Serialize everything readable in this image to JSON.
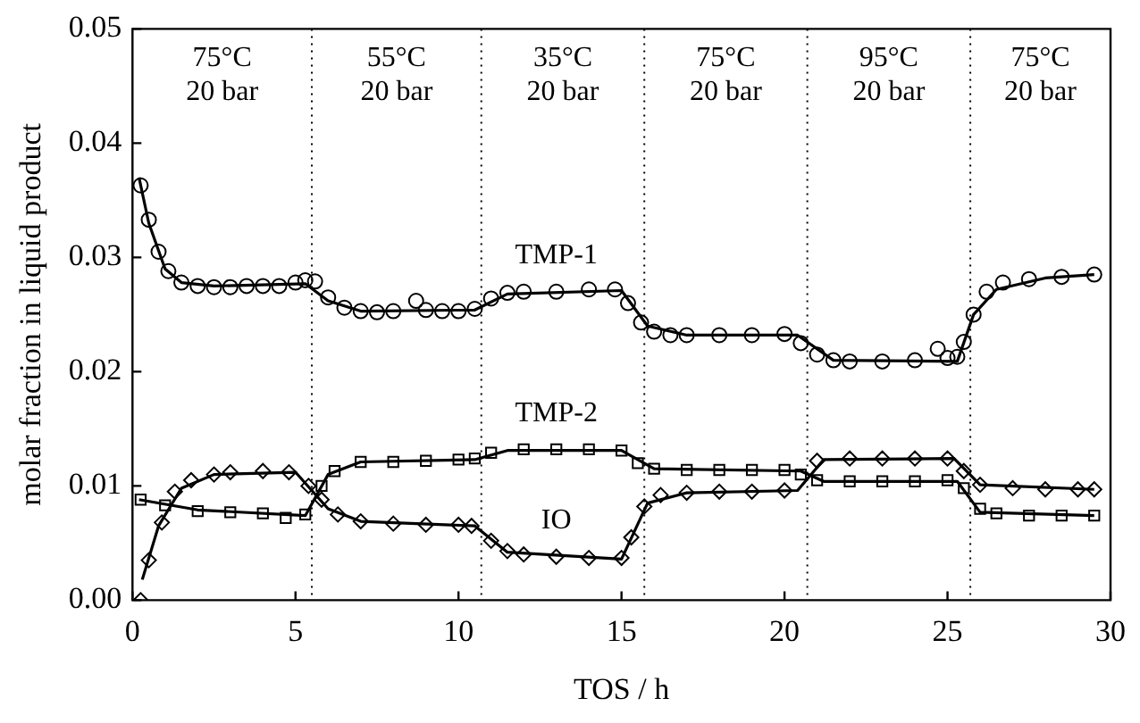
{
  "chart_data": {
    "type": "scatter",
    "xlabel": "TOS / h",
    "ylabel": "molar fraction in liquid product",
    "xlim": [
      0,
      30
    ],
    "xticks": [
      0,
      5,
      10,
      15,
      20,
      25,
      30
    ],
    "ylim": [
      0,
      0.05
    ],
    "yticks": [
      {
        "value": 0,
        "label": "0.00"
      },
      {
        "value": 0.01,
        "label": "0.01"
      },
      {
        "value": 0.02,
        "label": "0.02"
      },
      {
        "value": 0.03,
        "label": "0.03"
      },
      {
        "value": 0.04,
        "label": "0.04"
      },
      {
        "value": 0.05,
        "label": "0.05"
      }
    ],
    "legend": false,
    "series": [
      {
        "name": "TMP-1",
        "marker": "circle",
        "color": "#000000",
        "x": [
          0.25,
          0.5,
          0.8,
          1.1,
          1.5,
          2,
          2.5,
          3,
          3.5,
          4,
          4.5,
          5,
          5.3,
          5.6,
          6,
          6.5,
          7,
          7.5,
          8,
          8.7,
          9,
          9.5,
          10,
          10.5,
          11,
          11.5,
          12,
          13,
          14,
          14.8,
          15.2,
          15.6,
          16,
          16.5,
          17,
          18,
          19,
          20,
          20.5,
          21,
          21.5,
          22,
          23,
          24,
          24.7,
          25,
          25.3,
          25.5,
          25.8,
          26.2,
          26.7,
          27.5,
          28.5,
          29.5
        ],
        "values": [
          0.0363,
          0.0333,
          0.0305,
          0.0288,
          0.0278,
          0.0275,
          0.0274,
          0.0274,
          0.0275,
          0.0275,
          0.0275,
          0.0278,
          0.028,
          0.0279,
          0.0265,
          0.0256,
          0.0253,
          0.0252,
          0.0253,
          0.0262,
          0.0254,
          0.0253,
          0.0253,
          0.0255,
          0.0264,
          0.0269,
          0.027,
          0.027,
          0.0272,
          0.0272,
          0.026,
          0.0243,
          0.0235,
          0.0232,
          0.0232,
          0.0232,
          0.0232,
          0.0233,
          0.0225,
          0.0215,
          0.021,
          0.0209,
          0.0209,
          0.021,
          0.022,
          0.0212,
          0.0213,
          0.0226,
          0.025,
          0.027,
          0.0278,
          0.0281,
          0.0283,
          0.0285
        ]
      },
      {
        "name": "TMP-2",
        "marker": "square",
        "color": "#000000",
        "x": [
          0.25,
          1,
          2,
          3,
          4,
          4.7,
          5.3,
          5.8,
          6.2,
          7,
          8,
          9,
          10,
          10.5,
          11,
          12,
          13,
          14,
          15,
          15.5,
          16,
          17,
          18,
          19,
          20,
          20.5,
          21,
          22,
          23,
          24,
          25,
          25.5,
          26,
          26.5,
          27.5,
          28.5,
          29.5
        ],
        "values": [
          0.0088,
          0.0083,
          0.0078,
          0.0077,
          0.0076,
          0.0072,
          0.0075,
          0.01,
          0.0113,
          0.0121,
          0.0121,
          0.0122,
          0.0123,
          0.0124,
          0.0129,
          0.0132,
          0.0132,
          0.0132,
          0.0131,
          0.012,
          0.0115,
          0.0114,
          0.0114,
          0.0114,
          0.0114,
          0.011,
          0.0105,
          0.0104,
          0.0104,
          0.0104,
          0.0105,
          0.0098,
          0.008,
          0.0076,
          0.0074,
          0.0074,
          0.0074
        ]
      },
      {
        "name": "IO",
        "marker": "diamond",
        "color": "#000000",
        "x": [
          0.25,
          0.5,
          0.9,
          1.3,
          1.8,
          2.5,
          3,
          4,
          4.8,
          5.4,
          5.8,
          6.3,
          7,
          8,
          9,
          10,
          10.4,
          11,
          11.5,
          12,
          13,
          14,
          15,
          15.3,
          15.7,
          16.2,
          17,
          18,
          19,
          20,
          20.5,
          21,
          22,
          23,
          24,
          25,
          25.5,
          26,
          27,
          28,
          29,
          29.5
        ],
        "values": [
          0,
          0.0035,
          0.0068,
          0.0095,
          0.0105,
          0.011,
          0.0112,
          0.0113,
          0.0112,
          0.01,
          0.0088,
          0.0075,
          0.0069,
          0.0067,
          0.0066,
          0.0066,
          0.0065,
          0.0052,
          0.0043,
          0.004,
          0.0038,
          0.0037,
          0.0037,
          0.0055,
          0.0082,
          0.0092,
          0.0094,
          0.0095,
          0.0095,
          0.0096,
          null,
          0.0122,
          0.0124,
          0.0124,
          0.0124,
          0.0124,
          0.0113,
          0.0101,
          0.0098,
          0.0097,
          0.0097,
          0.0097
        ]
      },
      {
        "type": "line",
        "marker": "none",
        "color": "#000000",
        "x": [
          0.2,
          0.5,
          1,
          1.5,
          2.5,
          5.3,
          6,
          7,
          10.5,
          11.5,
          15,
          15.8,
          17,
          20.4,
          21.5,
          25.3,
          25.8,
          26.5,
          28,
          29.5
        ],
        "values": [
          0.037,
          0.033,
          0.029,
          0.0278,
          0.0275,
          0.0277,
          0.0262,
          0.0253,
          0.0254,
          0.0268,
          0.0271,
          0.024,
          0.0232,
          0.0232,
          0.021,
          0.0209,
          0.025,
          0.0272,
          0.0282,
          0.0285
        ]
      },
      {
        "type": "line",
        "marker": "none",
        "color": "#000000",
        "x": [
          0.2,
          2,
          5.3,
          6,
          7,
          10.5,
          11.5,
          15,
          16,
          20.5,
          21.2,
          25.3,
          26,
          29.5
        ],
        "values": [
          0.0088,
          0.0079,
          0.0074,
          0.011,
          0.0121,
          0.0123,
          0.0131,
          0.0131,
          0.0115,
          0.0113,
          0.0104,
          0.0104,
          0.0077,
          0.0074
        ]
      },
      {
        "type": "line",
        "marker": "none",
        "color": "#000000",
        "x": [
          0.3,
          0.8,
          1.5,
          2.5,
          5,
          6,
          7,
          10.5,
          11.5,
          15,
          15.8,
          17,
          20.4,
          21.2,
          25.2,
          26,
          29.5
        ],
        "values": [
          0.0018,
          0.0065,
          0.0098,
          0.011,
          0.0112,
          0.008,
          0.0069,
          0.0065,
          0.0042,
          0.0036,
          0.0085,
          0.0094,
          0.0096,
          0.0123,
          0.0124,
          0.0101,
          0.0097
        ]
      }
    ],
    "ref_lines": [
      {
        "axis": "x",
        "value": 5.5,
        "line_style": "dotted"
      },
      {
        "axis": "x",
        "value": 10.7,
        "line_style": "dotted"
      },
      {
        "axis": "x",
        "value": 15.7,
        "line_style": "dotted"
      },
      {
        "axis": "x",
        "value": 20.7,
        "line_style": "dotted"
      },
      {
        "axis": "x",
        "value": 25.7,
        "line_style": "dotted"
      }
    ],
    "annotations": [
      "75°C\n20 bar",
      "55°C\n20 bar",
      "35°C\n20 bar",
      "75°C\n20 bar",
      "95°C\n20 bar",
      "75°C\n20 bar"
    ]
  }
}
